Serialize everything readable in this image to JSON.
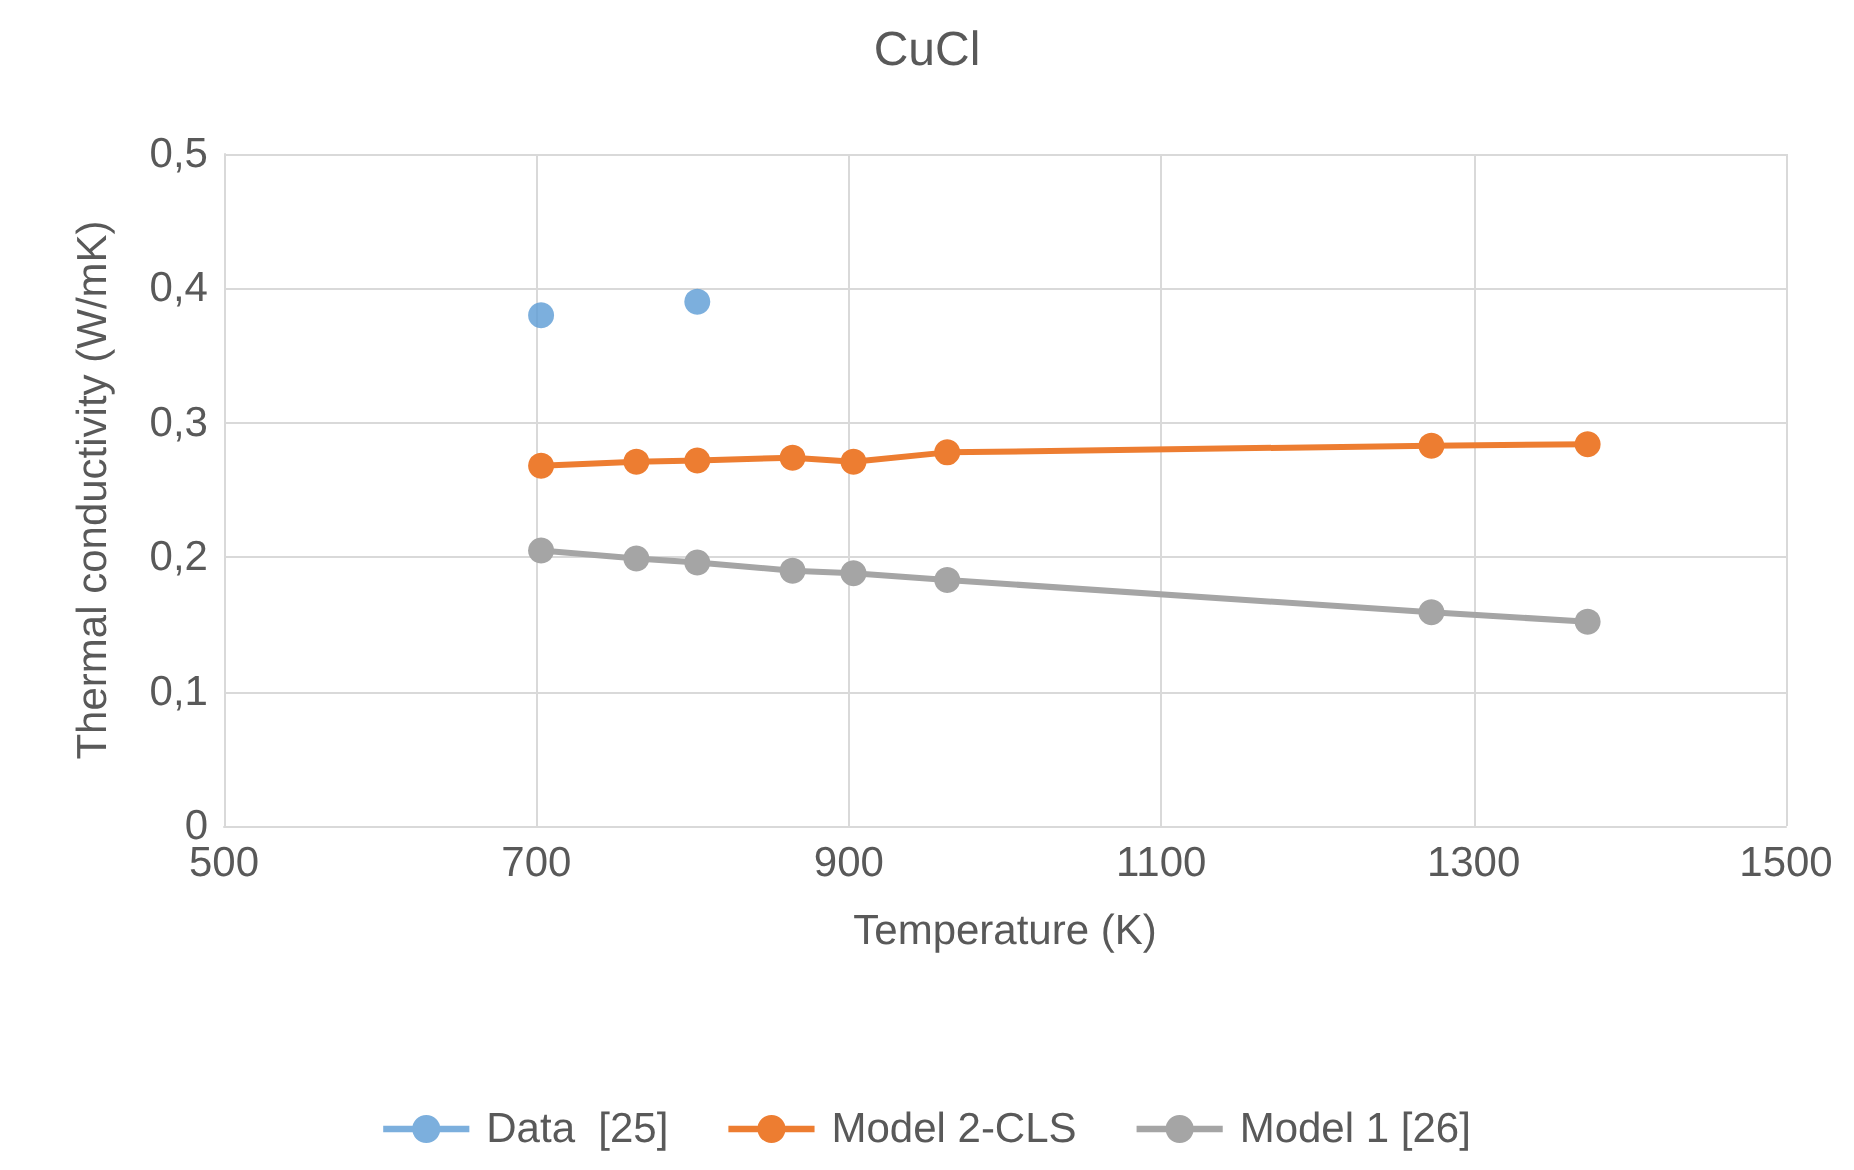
{
  "chart_data": {
    "type": "line",
    "title": "CuCl",
    "xlabel": "Temperature (K)",
    "ylabel": "Thermal conductivity (W/mK)",
    "xlim": [
      500,
      1500
    ],
    "xticks": [
      500,
      700,
      900,
      1100,
      1300,
      1500
    ],
    "ylim": [
      0,
      0.5
    ],
    "yticks": [
      0,
      {
        "value": 0.1,
        "label": "0,1"
      },
      {
        "value": 0.2,
        "label": "0,2"
      },
      {
        "value": 0.3,
        "label": "0,3"
      },
      {
        "value": 0.4,
        "label": "0,4"
      },
      {
        "value": 0.5,
        "label": "0,5"
      }
    ],
    "grid": true,
    "legend": "bottom",
    "marker": "circle",
    "series": [
      {
        "name": "Data  [25]",
        "type": "scatter",
        "color": "#5b9bd5",
        "x": [
          703,
          803
        ],
        "values": [
          0.38,
          0.39
        ]
      },
      {
        "name": "Model 2-CLS",
        "color": "#ed7d31",
        "x": [
          703,
          764,
          803,
          864,
          903,
          963,
          1273,
          1373
        ],
        "values": [
          0.268,
          0.271,
          0.272,
          0.274,
          0.271,
          0.278,
          0.283,
          0.284
        ]
      },
      {
        "name": "Model 1 [26]",
        "color": "#a5a5a5",
        "x": [
          703,
          764,
          803,
          864,
          903,
          963,
          1273,
          1373
        ],
        "values": [
          0.205,
          0.199,
          0.196,
          0.19,
          0.188,
          0.183,
          0.159,
          0.152
        ]
      }
    ]
  }
}
